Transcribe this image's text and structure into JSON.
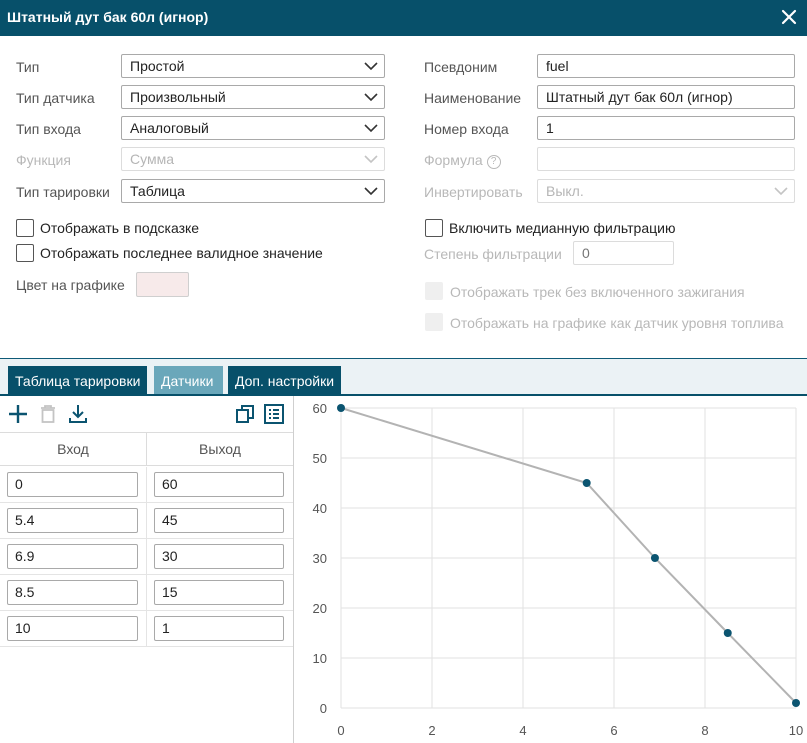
{
  "window": {
    "title": "Штатный дут бак 60л (игнор)"
  },
  "form": {
    "type": {
      "label": "Тип",
      "value": "Простой"
    },
    "sensor_type": {
      "label": "Тип датчика",
      "value": "Произвольный"
    },
    "input_type": {
      "label": "Тип входа",
      "value": "Аналоговый"
    },
    "function": {
      "label": "Функция",
      "value": "Сумма"
    },
    "calibration_type": {
      "label": "Тип тарировки",
      "value": "Таблица"
    },
    "alias": {
      "label": "Псевдоним",
      "value": "fuel"
    },
    "name": {
      "label": "Наименование",
      "value": "Штатный дут бак 60л (игнор)"
    },
    "input_number": {
      "label": "Номер входа",
      "value": "1"
    },
    "formula": {
      "label": "Формула",
      "help": "?",
      "value": ""
    },
    "invert": {
      "label": "Инвертировать",
      "value": "Выкл."
    },
    "show_in_tooltip": {
      "label": "Отображать в подсказке",
      "checked": false
    },
    "show_last_valid": {
      "label": "Отображать последнее валидное значение",
      "checked": false
    },
    "graph_color": {
      "label": "Цвет на графике",
      "color": "#f7eaea"
    },
    "median_filter": {
      "label": "Включить медианную фильтрацию",
      "checked": false
    },
    "filter_degree": {
      "label": "Степень фильтрации",
      "placeholder": "0"
    },
    "show_track_no_ignition": {
      "label": "Отображать трек без включенного зажигания",
      "checked": false
    },
    "show_as_fuel_sensor": {
      "label": "Отображать на графике как датчик уровня топлива",
      "checked": false
    }
  },
  "tabs": [
    {
      "label": "Таблица тарировки"
    },
    {
      "label": "Датчики"
    },
    {
      "label": "Доп. настройки"
    }
  ],
  "toolbar": {
    "icons": [
      "plus-icon",
      "trash-icon",
      "download-icon",
      "copy-icon",
      "list-icon"
    ]
  },
  "table": {
    "headers": {
      "input": "Вход",
      "output": "Выход"
    },
    "rows": [
      {
        "input": "0",
        "output": "60"
      },
      {
        "input": "5.4",
        "output": "45"
      },
      {
        "input": "6.9",
        "output": "30"
      },
      {
        "input": "8.5",
        "output": "15"
      },
      {
        "input": "10",
        "output": "1"
      }
    ]
  },
  "colors": {
    "primary": "#07506a",
    "tab_active": "#6aa7ba",
    "line": "#b3b3b3",
    "point": "#0b5470"
  },
  "chart_data": {
    "type": "line",
    "x": [
      0,
      5.4,
      6.9,
      8.5,
      10
    ],
    "y": [
      60,
      45,
      30,
      15,
      1
    ],
    "xlim": [
      0,
      10
    ],
    "ylim": [
      0,
      60
    ],
    "xticks": [
      0,
      2,
      4,
      6,
      8,
      10
    ],
    "yticks": [
      0,
      10,
      20,
      30,
      40,
      50,
      60
    ],
    "grid": true,
    "title": "",
    "xlabel": "",
    "ylabel": ""
  }
}
